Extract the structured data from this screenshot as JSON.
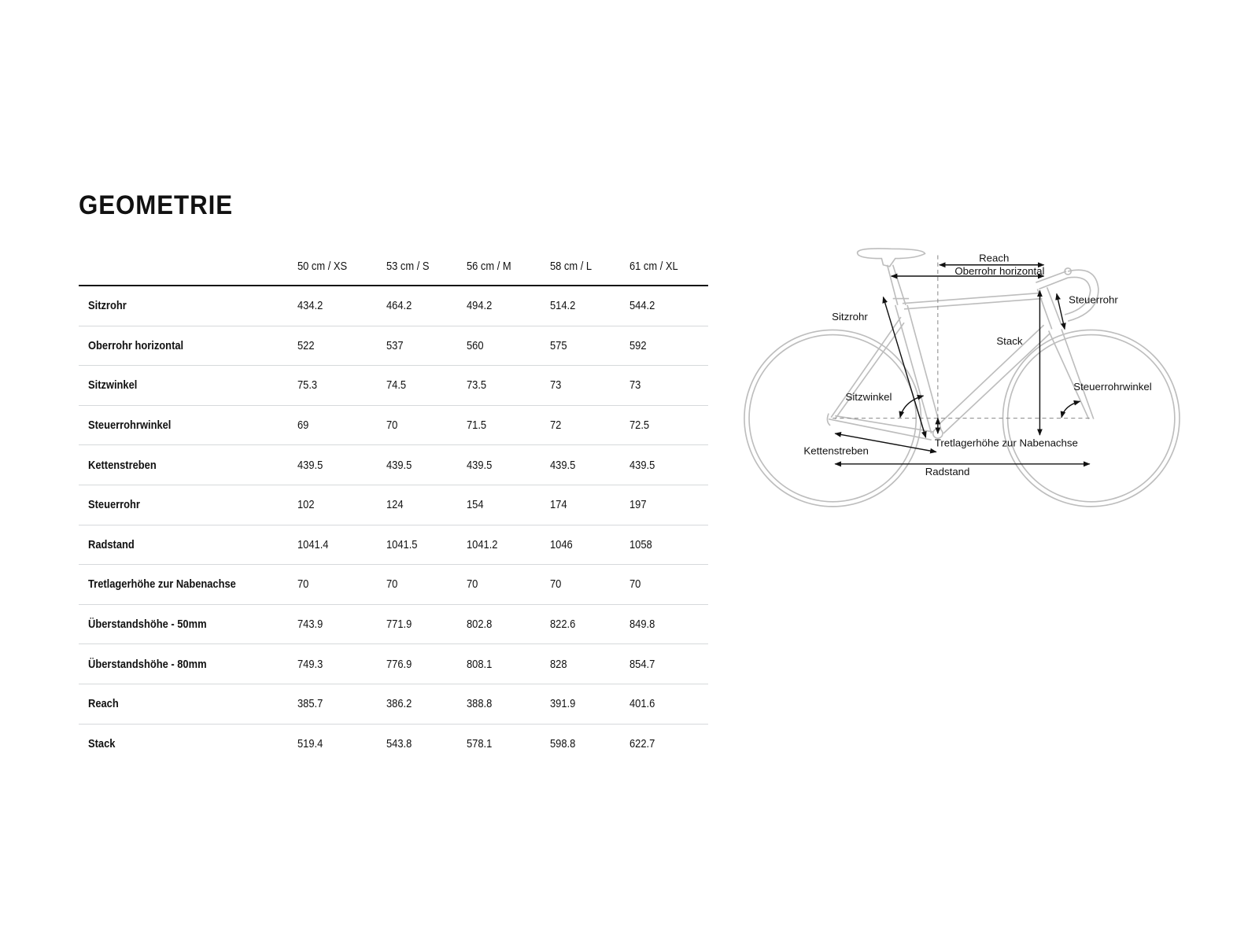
{
  "title": "GEOMETRIE",
  "table": {
    "columns": [
      "50 cm / XS",
      "53 cm / S",
      "56 cm / M",
      "58 cm / L",
      "61 cm / XL"
    ],
    "rows": [
      {
        "label": "Sitzrohr",
        "values": [
          "434.2",
          "464.2",
          "494.2",
          "514.2",
          "544.2"
        ]
      },
      {
        "label": "Oberrohr horizontal",
        "values": [
          "522",
          "537",
          "560",
          "575",
          "592"
        ]
      },
      {
        "label": "Sitzwinkel",
        "values": [
          "75.3",
          "74.5",
          "73.5",
          "73",
          "73"
        ]
      },
      {
        "label": "Steuerrohrwinkel",
        "values": [
          "69",
          "70",
          "71.5",
          "72",
          "72.5"
        ]
      },
      {
        "label": "Kettenstreben",
        "values": [
          "439.5",
          "439.5",
          "439.5",
          "439.5",
          "439.5"
        ]
      },
      {
        "label": "Steuerrohr",
        "values": [
          "102",
          "124",
          "154",
          "174",
          "197"
        ]
      },
      {
        "label": "Radstand",
        "values": [
          "1041.4",
          "1041.5",
          "1041.2",
          "1046",
          "1058"
        ]
      },
      {
        "label": "Tretlagerhöhe zur Nabenachse",
        "values": [
          "70",
          "70",
          "70",
          "70",
          "70"
        ]
      },
      {
        "label": "Überstandshöhe - 50mm",
        "values": [
          "743.9",
          "771.9",
          "802.8",
          "822.6",
          "849.8"
        ]
      },
      {
        "label": "Überstandshöhe - 80mm",
        "values": [
          "749.3",
          "776.9",
          "808.1",
          "828",
          "854.7"
        ]
      },
      {
        "label": "Reach",
        "values": [
          "385.7",
          "386.2",
          "388.8",
          "391.9",
          "401.6"
        ]
      },
      {
        "label": "Stack",
        "values": [
          "519.4",
          "543.8",
          "578.1",
          "598.8",
          "622.7"
        ]
      }
    ]
  },
  "diagram": {
    "labels": {
      "reach": "Reach",
      "top_tube": "Oberrohr horizontal",
      "head_tube": "Steuerrohr",
      "seat_tube": "Sitzrohr",
      "stack": "Stack",
      "seat_angle": "Sitzwinkel",
      "head_angle": "Steuerrohrwinkel",
      "bb_drop": "Tretlagerhöhe zur Nabenachse",
      "chainstays": "Kettenstreben",
      "wheelbase": "Radstand"
    },
    "colors": {
      "frame": "#bdbdbd",
      "arrows": "#111111"
    }
  }
}
